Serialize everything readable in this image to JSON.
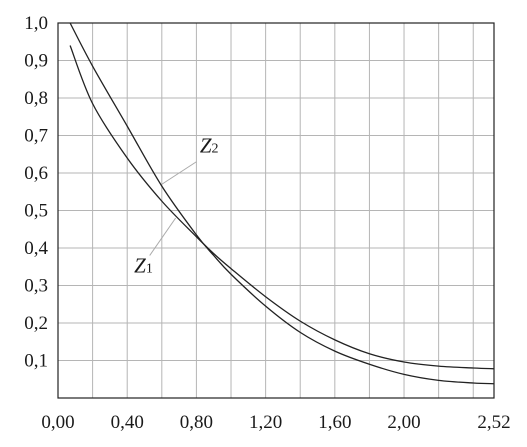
{
  "chart_data": {
    "type": "line",
    "title": "",
    "xlabel": "",
    "ylabel": "",
    "xlim": [
      0.0,
      2.52
    ],
    "ylim": [
      0.0,
      1.0
    ],
    "grid": true,
    "x_ticks": [
      0.0,
      0.2,
      0.4,
      0.6,
      0.8,
      1.0,
      1.2,
      1.4,
      1.6,
      1.8,
      2.0,
      2.2,
      2.4,
      2.52
    ],
    "x_tick_labels": [
      "0,00",
      "0,40",
      "0,80",
      "1,20",
      "1,60",
      "2,00",
      "2,52"
    ],
    "x_tick_label_values": [
      0.0,
      0.4,
      0.8,
      1.2,
      1.6,
      2.0,
      2.52
    ],
    "y_ticks": [
      0.1,
      0.2,
      0.3,
      0.4,
      0.5,
      0.6,
      0.7,
      0.8,
      0.9,
      1.0
    ],
    "y_tick_labels": [
      "0,1",
      "0,2",
      "0,3",
      "0,4",
      "0,5",
      "0,6",
      "0,7",
      "0,8",
      "0,9",
      "1,0"
    ],
    "series": [
      {
        "name": "Z2",
        "label_main": "Z",
        "label_sub": "2",
        "x": [
          0.07,
          0.2,
          0.4,
          0.6,
          0.8,
          0.9,
          1.0,
          1.2,
          1.4,
          1.6,
          1.8,
          2.0,
          2.2,
          2.4,
          2.52
        ],
        "values": [
          1.0,
          0.885,
          0.725,
          0.565,
          0.435,
          0.38,
          0.33,
          0.245,
          0.175,
          0.125,
          0.09,
          0.063,
          0.047,
          0.04,
          0.038
        ]
      },
      {
        "name": "Z1",
        "label_main": "Z",
        "label_sub": "1",
        "x": [
          0.07,
          0.2,
          0.4,
          0.6,
          0.8,
          0.9,
          1.0,
          1.2,
          1.4,
          1.6,
          1.8,
          2.0,
          2.2,
          2.4,
          2.52
        ],
        "values": [
          0.94,
          0.785,
          0.64,
          0.525,
          0.43,
          0.385,
          0.345,
          0.27,
          0.205,
          0.155,
          0.118,
          0.096,
          0.085,
          0.08,
          0.078
        ]
      }
    ],
    "annotations": [
      {
        "series": "Z2",
        "text_x": 0.82,
        "text_y": 0.655,
        "leader_from": [
          0.8,
          0.63
        ],
        "leader_to": [
          0.6,
          0.57
        ]
      },
      {
        "series": "Z1",
        "text_x": 0.44,
        "text_y": 0.335,
        "leader_from": [
          0.53,
          0.38
        ],
        "leader_to": [
          0.68,
          0.48
        ]
      }
    ]
  }
}
